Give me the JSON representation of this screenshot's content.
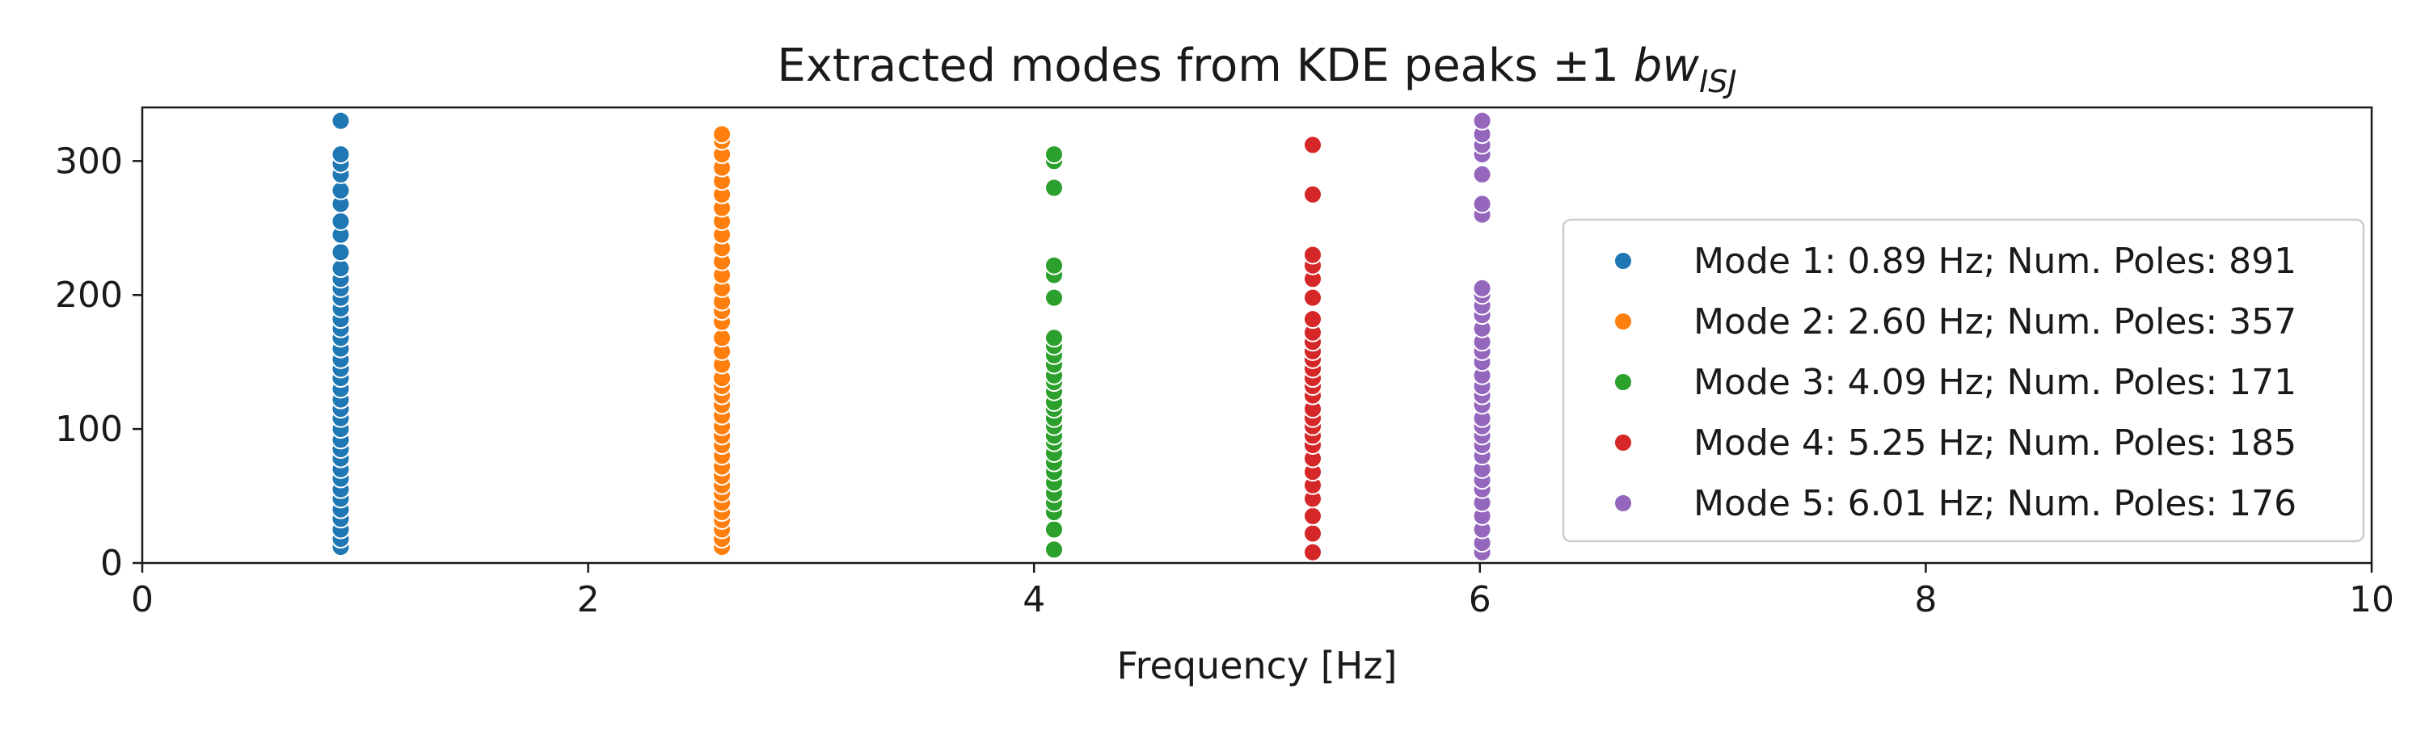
{
  "chart_data": {
    "type": "scatter",
    "title": {
      "main": "Extracted modes from KDE peaks ±1 ",
      "math": "bw",
      "sub": "ISJ"
    },
    "xlabel": "Frequency [Hz]",
    "ylabel": "",
    "xlim": [
      0,
      10
    ],
    "ylim": [
      0,
      340
    ],
    "x_ticks": [
      0,
      2,
      4,
      6,
      8,
      10
    ],
    "x_tick_labels": [
      "0",
      "2",
      "4",
      "6",
      "8",
      "10"
    ],
    "y_ticks": [
      0,
      100,
      200,
      300
    ],
    "y_tick_labels": [
      "0",
      "100",
      "200",
      "300"
    ],
    "grid": false,
    "legend_position": "center-right",
    "series": [
      {
        "name": "Mode 1: 0.89 Hz; Num. Poles: 891",
        "color": "#1f77b4",
        "x": 0.89,
        "y": [
          12,
          18,
          25,
          33,
          40,
          48,
          55,
          63,
          70,
          78,
          85,
          92,
          100,
          108,
          115,
          122,
          130,
          138,
          145,
          152,
          160,
          168,
          175,
          182,
          190,
          198,
          205,
          212,
          220,
          232,
          245,
          255,
          268,
          278,
          290,
          298,
          305,
          330
        ]
      },
      {
        "name": "Mode 2: 2.60 Hz; Num. Poles: 357",
        "color": "#ff7f0e",
        "x": 2.6,
        "y": [
          12,
          18,
          25,
          32,
          38,
          45,
          52,
          58,
          65,
          72,
          80,
          88,
          95,
          102,
          110,
          118,
          125,
          132,
          138,
          148,
          158,
          168,
          180,
          188,
          195,
          205,
          215,
          225,
          235,
          245,
          255,
          265,
          275,
          285,
          295,
          305,
          315,
          320
        ]
      },
      {
        "name": "Mode 3: 4.09 Hz; Num. Poles: 171",
        "color": "#2ca02c",
        "x": 4.09,
        "y": [
          10,
          25,
          38,
          45,
          52,
          60,
          68,
          75,
          82,
          90,
          95,
          102,
          108,
          115,
          120,
          128,
          135,
          140,
          148,
          155,
          162,
          168,
          198,
          215,
          222,
          280,
          300,
          305
        ]
      },
      {
        "name": "Mode 4: 5.25 Hz; Num. Poles: 185",
        "color": "#d62728",
        "x": 5.25,
        "y": [
          8,
          22,
          35,
          48,
          58,
          68,
          78,
          88,
          95,
          102,
          108,
          115,
          125,
          132,
          138,
          145,
          152,
          158,
          165,
          172,
          182,
          198,
          212,
          222,
          230,
          275,
          312
        ]
      },
      {
        "name": "Mode 5: 6.01 Hz; Num. Poles: 176",
        "color": "#9467bd",
        "x": 6.01,
        "y": [
          8,
          15,
          25,
          35,
          45,
          55,
          62,
          70,
          80,
          88,
          95,
          102,
          108,
          118,
          125,
          132,
          140,
          150,
          158,
          165,
          175,
          185,
          192,
          200,
          205,
          260,
          268,
          290,
          305,
          312,
          320,
          330
        ]
      }
    ]
  }
}
